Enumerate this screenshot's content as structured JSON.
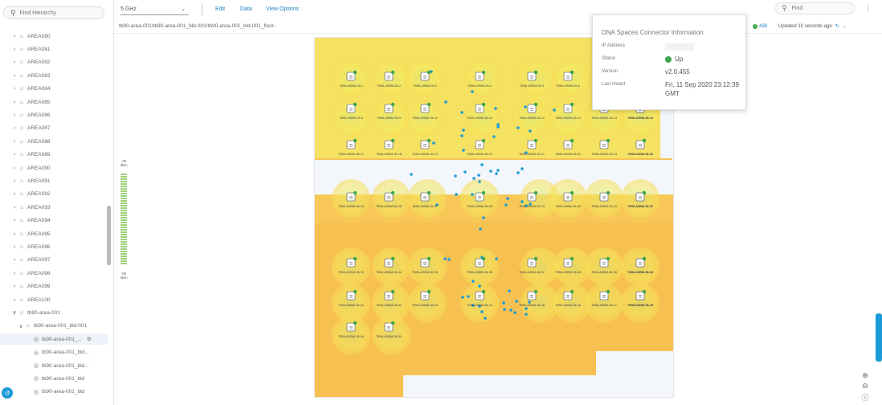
{
  "sidebar": {
    "search_placeholder": "Find Hierarchy",
    "items": [
      {
        "label": "AREA080",
        "level": 1,
        "icon": "building"
      },
      {
        "label": "AREA081",
        "level": 1,
        "icon": "building"
      },
      {
        "label": "AREA082",
        "level": 1,
        "icon": "building"
      },
      {
        "label": "AREA083",
        "level": 1,
        "icon": "building"
      },
      {
        "label": "AREA084",
        "level": 1,
        "icon": "building"
      },
      {
        "label": "AREA085",
        "level": 1,
        "icon": "building"
      },
      {
        "label": "AREA086",
        "level": 1,
        "icon": "building"
      },
      {
        "label": "AREA087",
        "level": 1,
        "icon": "building"
      },
      {
        "label": "AREA088",
        "level": 1,
        "icon": "building"
      },
      {
        "label": "AREA089",
        "level": 1,
        "icon": "building"
      },
      {
        "label": "AREA090",
        "level": 1,
        "icon": "building"
      },
      {
        "label": "AREA091",
        "level": 1,
        "icon": "building"
      },
      {
        "label": "AREA092",
        "level": 1,
        "icon": "building"
      },
      {
        "label": "AREA093",
        "level": 1,
        "icon": "building"
      },
      {
        "label": "AREA094",
        "level": 1,
        "icon": "building"
      },
      {
        "label": "AREA095",
        "level": 1,
        "icon": "building"
      },
      {
        "label": "AREA096",
        "level": 1,
        "icon": "building"
      },
      {
        "label": "AREA097",
        "level": 1,
        "icon": "building"
      },
      {
        "label": "AREA098",
        "level": 1,
        "icon": "building"
      },
      {
        "label": "AREA099",
        "level": 1,
        "icon": "building"
      },
      {
        "label": "AREA100",
        "level": 1,
        "icon": "building"
      },
      {
        "label": "tb90-area-001",
        "level": 1,
        "icon": "building",
        "expanded": true
      },
      {
        "label": "tb90-area-001_bld-001",
        "level": 2,
        "icon": "building",
        "expanded": true
      },
      {
        "label": "tb90-area-001_...",
        "level": 3,
        "icon": "floor",
        "selected": true
      },
      {
        "label": "tb90-area-001_bld...",
        "level": 3,
        "icon": "floor"
      },
      {
        "label": "tb90-area-001_bld...",
        "level": 3,
        "icon": "floor"
      },
      {
        "label": "tb90-area-001_bld",
        "level": 3,
        "icon": "floor"
      },
      {
        "label": "tb90-area-001_bld",
        "level": 3,
        "icon": "floor"
      }
    ]
  },
  "toolbar": {
    "band": "5 GHz",
    "edit": "Edit",
    "data": "Data",
    "view_options": "View Options",
    "find_placeholder": "Find"
  },
  "breadcrumb": "tb90-area-001/tb90-area-001_bld-001/tb90-area-001_bld-001_floor-",
  "status": {
    "count": "436",
    "updated": "Updated 10 seconds ago"
  },
  "legend": {
    "top": "-35 dBm",
    "bottom": "-90 dBm"
  },
  "popup": {
    "title": "DNA Spaces Connector Information",
    "ip_label": "IP Address",
    "status_label": "Status",
    "status_value": "Up",
    "version_label": "Version",
    "version_value": "v2.0.455",
    "heard_label": "Last Heard",
    "heard_value_1": "Fri, 11 Sep 2020 23:12:39",
    "heard_value_2": "GMT"
  },
  "colors": {
    "accent": "#1b7fc4",
    "up": "#3aa64b",
    "client_dot": "#1b9bd7"
  },
  "aps": [
    {
      "row": 0,
      "labels": [
        "TB56-ASBM-36-1",
        "TB56-ASBM-36-2",
        "TB56-ASBM-36-3",
        "",
        "TB56-ASBM-36-4",
        "",
        "TB56-ASBM-36-5",
        "TB56-ASBM-36-6",
        "TB56-ASBM-36-7"
      ]
    },
    {
      "row": 1,
      "labels": [
        "TB56-ASBM-36-8",
        "TB56-ASBM-36-9",
        "TB56-ASBM-36-11",
        "",
        "TB56-ASBM-36-10",
        "",
        "TB56-ASBM-36-12",
        "TB56-ASBM-36-14",
        "TB56-ASBM-36-13",
        "TB56-ASBM-36-15",
        "TB56-ASBM-36-16"
      ]
    },
    {
      "row": 2,
      "labels": [
        "TB56-ASBM-36-17",
        "TB56-ASBM-36-18",
        "TB56-ASBM-36-19",
        "",
        "TB56-ASBM-36-20",
        "",
        "TB56-ASBM-36-21",
        "TB56-ASBM-36-22",
        "TB56-ASBM-36-23",
        "TB56-ASBM-36-24",
        "TB56-ASBM-36-31"
      ]
    },
    {
      "row": 3,
      "labels": [
        "TB56-ASBM-36-25",
        "TB56-ASBM-36-26",
        "TB56-ASBM-36-27",
        "",
        "TB56-ASBM-36-28",
        "",
        "TB56-ASBM-36-29",
        "TB56-ASBM-36-30",
        "TB56-ASBM-36-29",
        "TB56-ASBM-36-31",
        "TB56-ASBM-36-32"
      ]
    },
    {
      "row": 4,
      "labels": [
        "TB56-ASBM-36-33",
        "TB56-ASBM-36-34",
        "TB56-ASBM-36-35",
        "",
        "TB56-ASBM-36-36",
        "",
        "TB56-ASBM-36-37",
        "TB56-ASBM-36-38",
        "TB56-ASBM-36-38",
        "TB56-ASBM-36-39",
        "TB56-ASBM-36-40"
      ]
    },
    {
      "row": 5,
      "labels": [
        "TB56-ASBM-36-41",
        "TB56-ASBM-36-42",
        "TB56-ASBM-36-43",
        "",
        "TB56-ASBM-36-44",
        "",
        "TB56-ASBM-36-45",
        "TB56-ASBM-36-46",
        "TB56-ASBM-36-47",
        "TB56-ASBM-36-48",
        "TB56-ASBM-36-49"
      ]
    },
    {
      "row": 6,
      "labels": [
        "TB56-ASBM-36-49",
        "TB56-ASBM-36-50"
      ]
    }
  ]
}
